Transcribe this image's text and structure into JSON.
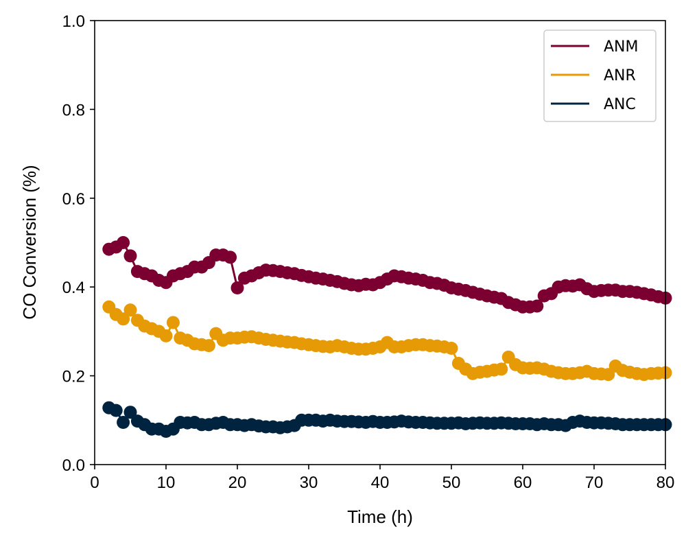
{
  "chart_data": {
    "type": "line",
    "title": "",
    "xlabel": "Time (h)",
    "ylabel": "CO Conversion (%)",
    "xlim": [
      0,
      80
    ],
    "ylim": [
      0.0,
      1.0
    ],
    "xticks": [
      0,
      10,
      20,
      30,
      40,
      50,
      60,
      70,
      80
    ],
    "yticks": [
      "0.0",
      "0.2",
      "0.4",
      "0.6",
      "0.8",
      "1.0"
    ],
    "grid": false,
    "legend_position": "top-right",
    "markers": true,
    "x": [
      2,
      3,
      4,
      5,
      6,
      7,
      8,
      9,
      10,
      11,
      12,
      13,
      14,
      15,
      16,
      17,
      18,
      19,
      20,
      21,
      22,
      23,
      24,
      25,
      26,
      27,
      28,
      29,
      30,
      31,
      32,
      33,
      34,
      35,
      36,
      37,
      38,
      39,
      40,
      41,
      42,
      43,
      44,
      45,
      46,
      47,
      48,
      49,
      50,
      51,
      52,
      53,
      54,
      55,
      56,
      57,
      58,
      59,
      60,
      61,
      62,
      63,
      64,
      65,
      66,
      67,
      68,
      69,
      70,
      71,
      72,
      73,
      74,
      75,
      76,
      77,
      78,
      79,
      80
    ],
    "series": [
      {
        "name": "ANM",
        "color": "#7b0031",
        "values": [
          0.485,
          0.49,
          0.5,
          0.47,
          0.435,
          0.43,
          0.425,
          0.415,
          0.41,
          0.425,
          0.43,
          0.435,
          0.445,
          0.445,
          0.455,
          0.472,
          0.472,
          0.467,
          0.398,
          0.42,
          0.425,
          0.432,
          0.438,
          0.437,
          0.435,
          0.432,
          0.43,
          0.426,
          0.423,
          0.42,
          0.418,
          0.415,
          0.412,
          0.408,
          0.405,
          0.403,
          0.406,
          0.405,
          0.41,
          0.418,
          0.425,
          0.423,
          0.42,
          0.418,
          0.415,
          0.41,
          0.408,
          0.404,
          0.398,
          0.395,
          0.392,
          0.388,
          0.384,
          0.38,
          0.377,
          0.374,
          0.365,
          0.36,
          0.355,
          0.355,
          0.357,
          0.38,
          0.385,
          0.4,
          0.403,
          0.402,
          0.405,
          0.396,
          0.39,
          0.392,
          0.393,
          0.393,
          0.39,
          0.39,
          0.388,
          0.385,
          0.382,
          0.378,
          0.375
        ]
      },
      {
        "name": "ANR",
        "color": "#e69a05",
        "values": [
          0.355,
          0.338,
          0.328,
          0.348,
          0.325,
          0.312,
          0.306,
          0.3,
          0.29,
          0.32,
          0.285,
          0.28,
          0.272,
          0.27,
          0.268,
          0.295,
          0.28,
          0.285,
          0.285,
          0.287,
          0.288,
          0.285,
          0.282,
          0.28,
          0.278,
          0.276,
          0.275,
          0.272,
          0.27,
          0.268,
          0.266,
          0.265,
          0.268,
          0.265,
          0.262,
          0.26,
          0.26,
          0.262,
          0.265,
          0.275,
          0.265,
          0.265,
          0.268,
          0.27,
          0.27,
          0.268,
          0.267,
          0.265,
          0.262,
          0.228,
          0.215,
          0.205,
          0.208,
          0.21,
          0.213,
          0.215,
          0.242,
          0.225,
          0.218,
          0.217,
          0.218,
          0.215,
          0.21,
          0.207,
          0.205,
          0.205,
          0.207,
          0.21,
          0.205,
          0.204,
          0.203,
          0.222,
          0.212,
          0.208,
          0.205,
          0.203,
          0.205,
          0.206,
          0.207
        ]
      },
      {
        "name": "ANC",
        "color": "#002440",
        "values": [
          0.128,
          0.122,
          0.095,
          0.118,
          0.098,
          0.09,
          0.08,
          0.08,
          0.075,
          0.08,
          0.095,
          0.094,
          0.095,
          0.09,
          0.09,
          0.093,
          0.095,
          0.09,
          0.09,
          0.088,
          0.09,
          0.087,
          0.085,
          0.085,
          0.083,
          0.085,
          0.088,
          0.1,
          0.1,
          0.1,
          0.098,
          0.1,
          0.098,
          0.097,
          0.097,
          0.096,
          0.095,
          0.097,
          0.095,
          0.095,
          0.096,
          0.098,
          0.096,
          0.095,
          0.095,
          0.094,
          0.093,
          0.093,
          0.093,
          0.094,
          0.092,
          0.093,
          0.094,
          0.093,
          0.093,
          0.094,
          0.093,
          0.092,
          0.092,
          0.092,
          0.09,
          0.092,
          0.09,
          0.09,
          0.088,
          0.095,
          0.098,
          0.095,
          0.094,
          0.094,
          0.093,
          0.092,
          0.09,
          0.09,
          0.09,
          0.09,
          0.09,
          0.09,
          0.09
        ]
      }
    ]
  }
}
